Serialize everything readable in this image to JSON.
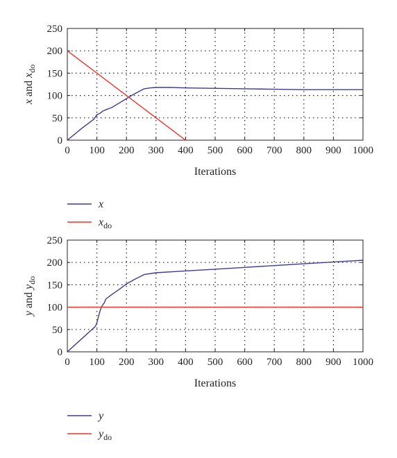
{
  "chart_data": [
    {
      "type": "line",
      "xlabel": "Iterations",
      "ylabel": {
        "var": "x",
        "mid": " and ",
        "base": "x",
        "sub": "do"
      },
      "xlim": [
        0,
        1000
      ],
      "ylim": [
        0,
        250
      ],
      "xticks": [
        0,
        100,
        200,
        300,
        400,
        500,
        600,
        700,
        800,
        900,
        1000
      ],
      "yticks": [
        0,
        50,
        100,
        150,
        200,
        250
      ],
      "grid": true,
      "legend_position": "below",
      "series": [
        {
          "name": "x",
          "legend": {
            "base": "x",
            "sub": ""
          },
          "color": "#3d3b8e",
          "x": [
            0,
            50,
            90,
            100,
            110,
            120,
            130,
            150,
            180,
            200,
            220,
            240,
            260,
            280,
            300,
            350,
            400,
            500,
            600,
            700,
            800,
            900,
            1000
          ],
          "y": [
            0,
            27,
            47,
            57,
            60,
            65,
            68,
            73,
            85,
            93,
            101,
            108,
            115,
            117,
            118,
            118,
            117,
            116,
            115,
            114,
            113,
            113,
            113
          ]
        },
        {
          "name": "x_do",
          "legend": {
            "base": "x",
            "sub": "do"
          },
          "color": "#e8352b",
          "x": [
            0,
            400
          ],
          "y": [
            200,
            0
          ]
        }
      ]
    },
    {
      "type": "line",
      "xlabel": "Iterations",
      "ylabel": {
        "var": "y",
        "mid": " and ",
        "base": "y",
        "sub": "do"
      },
      "xlim": [
        0,
        1000
      ],
      "ylim": [
        0,
        250
      ],
      "xticks": [
        0,
        100,
        200,
        300,
        400,
        500,
        600,
        700,
        800,
        900,
        1000
      ],
      "yticks": [
        0,
        50,
        100,
        150,
        200,
        250
      ],
      "grid": true,
      "legend_position": "below",
      "series": [
        {
          "name": "y",
          "legend": {
            "base": "y",
            "sub": ""
          },
          "color": "#3d3b8e",
          "x": [
            0,
            50,
            95,
            100,
            105,
            110,
            115,
            120,
            125,
            130,
            150,
            180,
            200,
            230,
            260,
            300,
            400,
            500,
            600,
            700,
            800,
            900,
            1000
          ],
          "y": [
            0,
            30,
            57,
            65,
            78,
            90,
            100,
            105,
            110,
            118,
            128,
            142,
            152,
            163,
            173,
            177,
            181,
            185,
            189,
            193,
            197,
            201,
            205
          ]
        },
        {
          "name": "y_do",
          "legend": {
            "base": "y",
            "sub": "do"
          },
          "color": "#e8352b",
          "x": [
            0,
            1000
          ],
          "y": [
            100,
            100
          ]
        }
      ]
    }
  ]
}
